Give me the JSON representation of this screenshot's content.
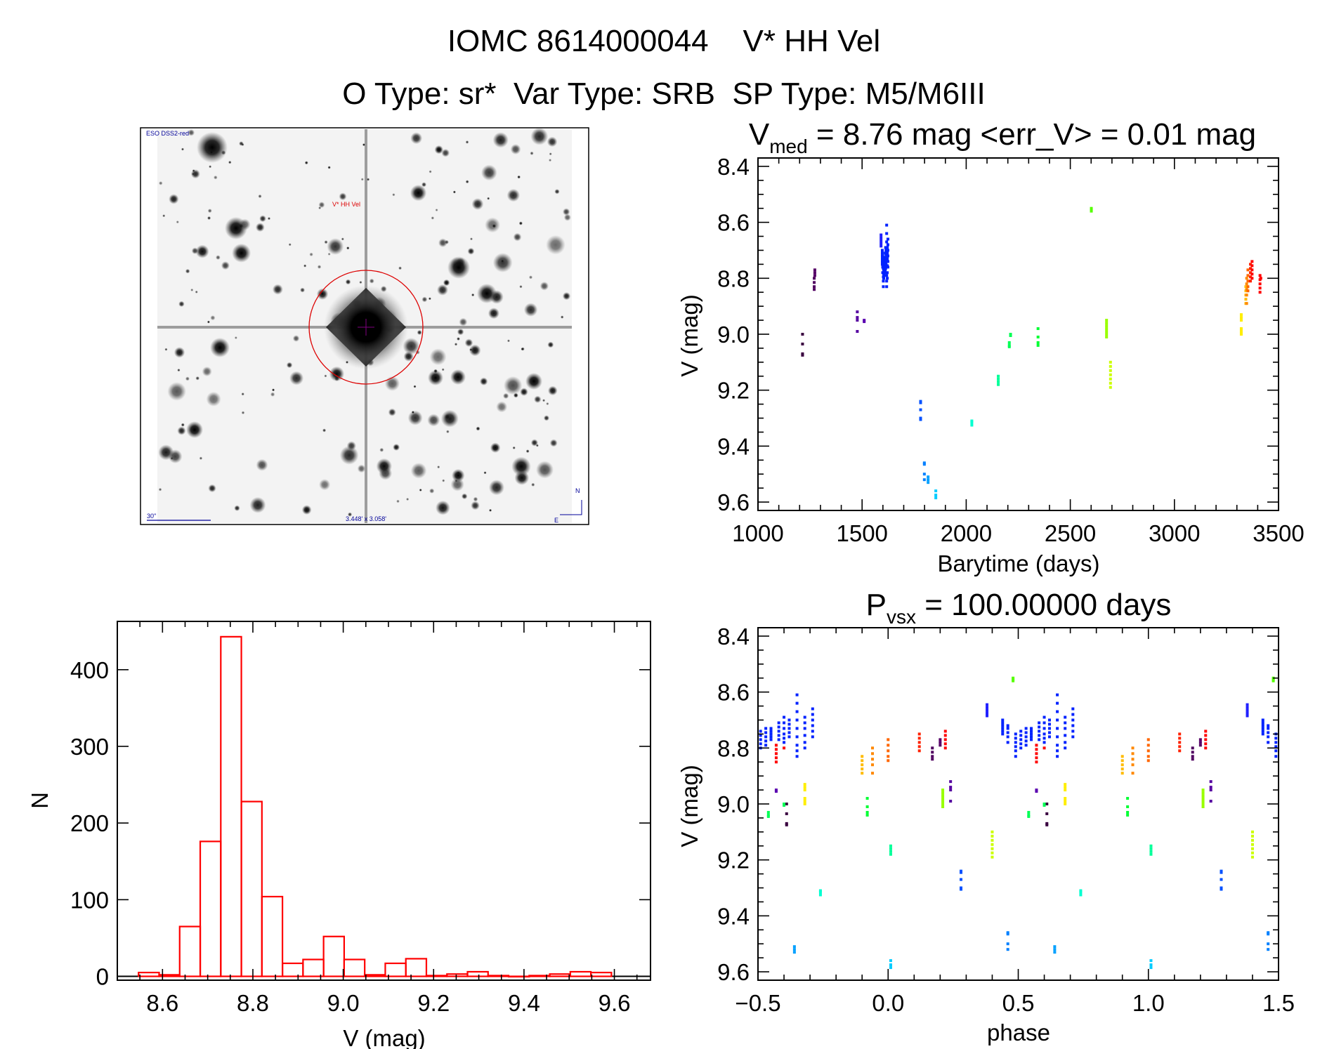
{
  "header": {
    "line1": "IOMC 8614000044    V* HH Vel",
    "line2": "O Type: sr*  Var Type: SRB  SP Type: M5/M6III"
  },
  "finder_image": {
    "survey_label": "ESO DSS2-red",
    "target_label": "V* HH Vel",
    "scale_label": "30\"",
    "size_label": "3.448' x 3.058'",
    "north_label": "N",
    "east_label": "E",
    "marker_color": "#dd0000",
    "annotation_color": "#000099"
  },
  "chart_data": [
    {
      "id": "histogram",
      "type": "bar",
      "style": "outline-step",
      "color": "#ff0000",
      "xlabel": "V (mag)",
      "ylabel": "N",
      "xlim": [
        8.5,
        9.68
      ],
      "ylim": [
        -5,
        463
      ],
      "xticks": [
        "8.6",
        "8.8",
        "9.0",
        "9.2",
        "9.4",
        "9.6"
      ],
      "yticks": [
        "0",
        "100",
        "200",
        "300",
        "400"
      ],
      "bin_start": 8.547,
      "bin_width": 0.0455,
      "values": [
        5,
        2,
        65,
        176,
        443,
        228,
        104,
        17,
        22,
        52,
        22,
        2,
        17,
        23,
        1,
        3,
        6,
        1,
        0,
        1,
        3,
        6,
        5
      ]
    },
    {
      "id": "light-curve",
      "type": "scatter",
      "title": {
        "main": "V",
        "sub": "med",
        "rest": " = 8.76 mag <err_V> = 0.01 mag"
      },
      "xlabel": "Barytime (days)",
      "ylabel": "V (mag)",
      "xlim": [
        1000,
        3500
      ],
      "ylim": [
        8.37,
        9.63
      ],
      "y_inverted": true,
      "xticks": [
        "1000",
        "1500",
        "2000",
        "2500",
        "3000",
        "3500"
      ],
      "yticks": [
        "8.4",
        "8.6",
        "8.8",
        "9.0",
        "9.2",
        "9.4",
        "9.6"
      ]
    },
    {
      "id": "phase-curve",
      "type": "scatter",
      "title": {
        "main": "P",
        "sub": "vsx",
        "rest": " = 100.00000 days"
      },
      "xlabel": "phase",
      "ylabel": "V (mag)",
      "xlim": [
        -0.5,
        1.5
      ],
      "ylim": [
        8.37,
        9.63
      ],
      "y_inverted": true,
      "xticks": [
        "−0.5",
        "0.0",
        "0.5",
        "1.0",
        "1.5"
      ],
      "yticks": [
        "8.4",
        "8.6",
        "8.8",
        "9.0",
        "9.2",
        "9.4",
        "9.6"
      ]
    }
  ],
  "observations": [
    {
      "t": 1214,
      "phase": 0.61,
      "color": "#3a0040",
      "v": [
        9.0,
        9.035,
        9.07,
        9.075
      ]
    },
    {
      "t": 1270,
      "phase": 0.17,
      "color": "#500060",
      "v": [
        8.8,
        8.815,
        8.83,
        8.84
      ]
    },
    {
      "t": 1273,
      "phase": 0.2,
      "color": "#550066",
      "v": [
        8.77,
        8.78,
        8.79
      ]
    },
    {
      "t": 1477,
      "phase": 0.24,
      "color": "#5500a0",
      "v": [
        8.92,
        8.94,
        8.95,
        8.99
      ]
    },
    {
      "t": 1510,
      "phase": 0.57,
      "color": "#5a00b0",
      "v": [
        8.95,
        8.955
      ]
    },
    {
      "t": 1591,
      "phase": 0.38,
      "color": "#2020ff",
      "v": [
        8.645,
        8.655,
        8.665,
        8.675,
        8.685
      ]
    },
    {
      "t": 1597,
      "phase": 0.44,
      "color": "#0022ff",
      "v": [
        8.7,
        8.71,
        8.72,
        8.73,
        8.74,
        8.75
      ]
    },
    {
      "t": 1599,
      "phase": 0.46,
      "color": "#0022ff",
      "v": [
        8.72,
        8.73,
        8.745,
        8.76,
        8.78
      ]
    },
    {
      "t": 1602,
      "phase": 0.49,
      "color": "#0022ff",
      "v": [
        8.75,
        8.765,
        8.78,
        8.795,
        8.81,
        8.83
      ]
    },
    {
      "t": 1604,
      "phase": 0.51,
      "color": "#0022ff",
      "v": [
        8.74,
        8.755,
        8.77,
        8.785,
        8.8
      ]
    },
    {
      "t": 1606,
      "phase": 0.53,
      "color": "#0022ff",
      "v": [
        8.73,
        8.745,
        8.76,
        8.775,
        8.79
      ]
    },
    {
      "t": 1608,
      "phase": 0.55,
      "color": "#0022ff",
      "v": [
        8.73,
        8.74,
        8.75,
        8.76,
        8.77
      ]
    },
    {
      "t": 1611,
      "phase": 0.58,
      "color": "#0022ff",
      "v": [
        8.71,
        8.725,
        8.74,
        8.755,
        8.77
      ]
    },
    {
      "t": 1613,
      "phase": 0.6,
      "color": "#0022ff",
      "v": [
        8.69,
        8.71,
        8.73,
        8.75,
        8.765,
        8.78
      ]
    },
    {
      "t": 1615,
      "phase": 0.62,
      "color": "#0022ff",
      "v": [
        8.7,
        8.715,
        8.73,
        8.745,
        8.76
      ]
    },
    {
      "t": 1618,
      "phase": 0.65,
      "color": "#0022ff",
      "v": [
        8.61,
        8.64,
        8.67,
        8.7,
        8.73,
        8.76,
        8.79,
        8.81,
        8.83
      ]
    },
    {
      "t": 1621,
      "phase": 0.68,
      "color": "#0022ff",
      "v": [
        8.69,
        8.71,
        8.73,
        8.755,
        8.78,
        8.8
      ]
    },
    {
      "t": 1624,
      "phase": 0.71,
      "color": "#0022ff",
      "v": [
        8.66,
        8.68,
        8.7,
        8.72,
        8.74,
        8.76
      ]
    },
    {
      "t": 1781,
      "phase": 0.28,
      "color": "#0050ff",
      "v": [
        9.24,
        9.245,
        9.27,
        9.3,
        9.305
      ]
    },
    {
      "t": 1799,
      "phase": 0.46,
      "color": "#0080ff",
      "v": [
        9.46,
        9.465,
        9.5,
        9.52
      ]
    },
    {
      "t": 1817,
      "phase": 0.64,
      "color": "#00a0ff",
      "v": [
        9.51,
        9.52,
        9.53
      ]
    },
    {
      "t": 1854,
      "phase": 0.01,
      "color": "#00ccff",
      "v": [
        9.56,
        9.575,
        9.585
      ]
    },
    {
      "t": 2027,
      "phase": 0.74,
      "color": "#00ffd0",
      "v": [
        9.31,
        9.315,
        9.325
      ]
    },
    {
      "t": 2154,
      "phase": 0.01,
      "color": "#00ff99",
      "v": [
        9.15,
        9.16,
        9.17,
        9.18
      ]
    },
    {
      "t": 2207,
      "phase": 0.54,
      "color": "#00ff55",
      "v": [
        9.03,
        9.04,
        9.045
      ]
    },
    {
      "t": 2213,
      "phase": 0.6,
      "color": "#00ff55",
      "v": [
        9.0,
        9.005
      ]
    },
    {
      "t": 2345,
      "phase": 0.92,
      "color": "#00ff33",
      "v": [
        8.98,
        9.01,
        9.03,
        9.04
      ]
    },
    {
      "t": 2601,
      "phase": 0.48,
      "color": "#55ff00",
      "v": [
        8.55,
        8.555,
        8.56
      ]
    },
    {
      "t": 2674,
      "phase": 0.21,
      "color": "#99ff00",
      "v": [
        8.95,
        8.96,
        8.97,
        8.98,
        8.99,
        9.0,
        9.01
      ]
    },
    {
      "t": 2693,
      "phase": 0.4,
      "color": "#ccff00",
      "v": [
        9.1,
        9.115,
        9.13,
        9.145,
        9.16,
        9.175,
        9.19
      ]
    },
    {
      "t": 3321,
      "phase": 0.68,
      "color": "#ffee00",
      "v": [
        8.93,
        8.94,
        8.95,
        8.98,
        8.99,
        9.0
      ]
    },
    {
      "t": 3343,
      "phase": 0.9,
      "color": "#ffbb00",
      "v": [
        8.83,
        8.845,
        8.86,
        8.875,
        8.89
      ]
    },
    {
      "t": 3347,
      "phase": 0.94,
      "color": "#ff8800",
      "v": [
        8.8,
        8.82,
        8.84,
        8.86,
        8.89
      ]
    },
    {
      "t": 3353,
      "phase": 0.0,
      "color": "#ff6600",
      "v": [
        8.77,
        8.79,
        8.81,
        8.83,
        8.845
      ]
    },
    {
      "t": 3365,
      "phase": 0.12,
      "color": "#ff2200",
      "v": [
        8.75,
        8.765,
        8.78,
        8.795,
        8.81
      ]
    },
    {
      "t": 3373,
      "phase": 0.22,
      "color": "#ff0000",
      "v": [
        8.74,
        8.755,
        8.77,
        8.785,
        8.8
      ]
    },
    {
      "t": 3411,
      "phase": 0.57,
      "color": "#ff0000",
      "v": [
        8.79,
        8.805,
        8.82,
        8.835,
        8.85
      ]
    },
    {
      "t": 3415,
      "phase": 0.6,
      "color": "#ff0000",
      "v": [
        8.8
      ]
    }
  ]
}
